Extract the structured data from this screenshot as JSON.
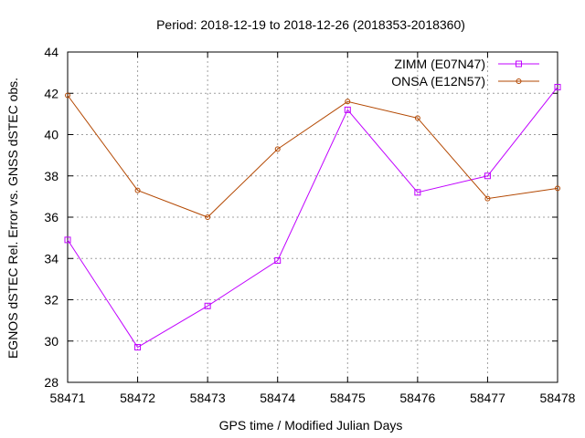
{
  "chart_data": {
    "type": "line",
    "title": "Period: 2018-12-19 to 2018-12-26 (2018353-2018360)",
    "xlabel": "GPS time / Modified Julian Days",
    "ylabel": "EGNOS dSTEC Rel. Error vs. GNSS dSTEC obs.",
    "xlim": [
      58471,
      58478
    ],
    "ylim": [
      28,
      44
    ],
    "xticks": [
      58471,
      58472,
      58473,
      58474,
      58475,
      58476,
      58477,
      58478
    ],
    "yticks": [
      28,
      30,
      32,
      34,
      36,
      38,
      40,
      42,
      44
    ],
    "grid": true,
    "legend_position": "top-right",
    "x": [
      58471,
      58472,
      58473,
      58474,
      58475,
      58476,
      58477,
      58478
    ],
    "series": [
      {
        "name": "ZIMM (E07N47)",
        "color": "#c000ff",
        "marker": "square",
        "values": [
          34.9,
          29.7,
          31.7,
          33.9,
          41.2,
          37.2,
          38.0,
          42.3
        ]
      },
      {
        "name": "ONSA (E12N57)",
        "color": "#b34700",
        "marker": "circle",
        "values": [
          41.9,
          37.3,
          36.0,
          39.3,
          41.6,
          40.8,
          36.9,
          37.4
        ]
      }
    ]
  }
}
